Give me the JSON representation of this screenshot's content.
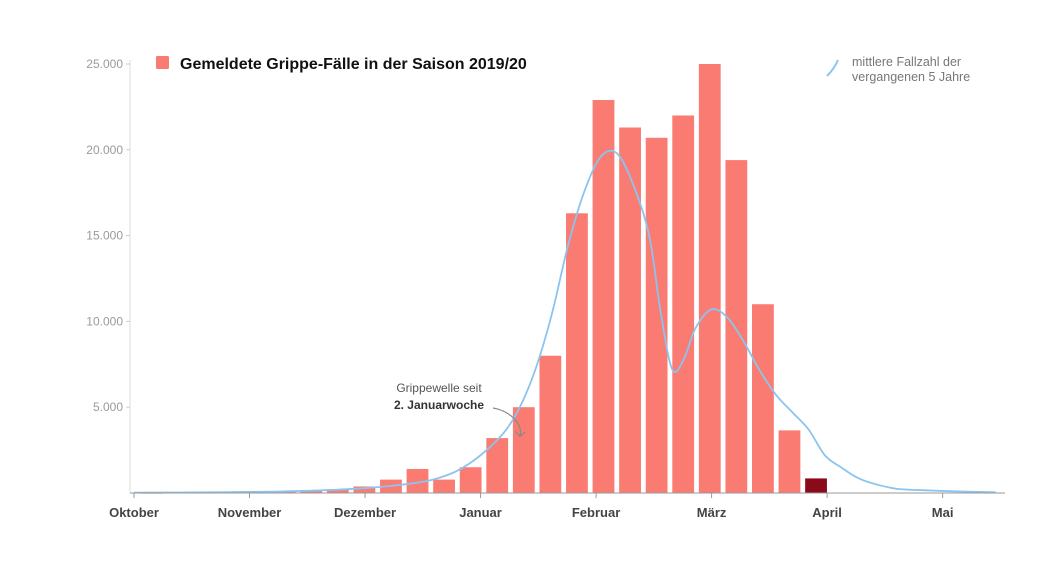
{
  "chart_data": {
    "type": "bar",
    "title": "Gemeldete Grippe-Fälle in der Saison 2019/20",
    "ylim": [
      0,
      25000
    ],
    "yticks": [
      5000,
      10000,
      15000,
      20000,
      25000
    ],
    "ytick_labels": [
      "5.000",
      "10.000",
      "15.000",
      "20.000",
      "25.000"
    ],
    "xlim": [
      0,
      37.7
    ],
    "month_ticks": [
      {
        "label": "Oktober",
        "x": 0
      },
      {
        "label": "November",
        "x": 5
      },
      {
        "label": "Dezember",
        "x": 10
      },
      {
        "label": "Januar",
        "x": 15
      },
      {
        "label": "Februar",
        "x": 20
      },
      {
        "label": "März",
        "x": 25
      },
      {
        "label": "April",
        "x": 30
      },
      {
        "label": "Mai",
        "x": 35
      }
    ],
    "series": [
      {
        "name": "Gemeldete Grippe-Fälle in der Saison 2019/20",
        "type": "bar",
        "color": "#f97b72",
        "highlight_color": "#8b0a1a",
        "x": [
          0.3,
          1.45,
          2.6,
          3.75,
          4.9,
          6.05,
          7.2,
          8.35,
          9.5,
          10.65,
          11.8,
          12.95,
          14.1,
          15.25,
          16.4,
          17.55,
          18.7,
          19.85,
          21.0,
          22.15,
          23.3,
          24.45,
          25.6,
          26.75,
          27.9,
          29.05,
          30.2
        ],
        "values": [
          20,
          60,
          30,
          50,
          80,
          100,
          130,
          220,
          380,
          780,
          1400,
          780,
          1500,
          3200,
          5000,
          8000,
          16300,
          22900,
          21300,
          20700,
          22000,
          25000,
          19400,
          11000,
          3650,
          850,
          0
        ],
        "highlight_index": 25
      },
      {
        "name": "mittlere Fallzahl der vergangenen 5 Jahre",
        "type": "line",
        "color": "#8cc4ee",
        "x": [
          0,
          2,
          4,
          6,
          8,
          10,
          12,
          13,
          14,
          15,
          16,
          16.7,
          17.4,
          18.1,
          18.8,
          19.5,
          20.2,
          20.9,
          21.6,
          22.3,
          22.8,
          23.3,
          23.8,
          24.3,
          25.0,
          25.7,
          26.4,
          27.1,
          27.8,
          28.5,
          29.2,
          29.9,
          30.6,
          31.3,
          32.0,
          33.0,
          34.0,
          35.0,
          36.0,
          37.3
        ],
        "values": [
          20,
          30,
          50,
          80,
          150,
          280,
          550,
          800,
          1300,
          2200,
          3500,
          5000,
          7300,
          10500,
          14500,
          17600,
          19600,
          19800,
          18000,
          15000,
          10500,
          7200,
          7800,
          9600,
          10700,
          10200,
          8800,
          7100,
          5700,
          4700,
          3700,
          2200,
          1500,
          900,
          550,
          250,
          170,
          120,
          80,
          40
        ]
      }
    ],
    "annotation": {
      "line1": "Grippewelle seit",
      "line2": "2. Januarwoche",
      "arrow_target_x": 16.7,
      "arrow_target_value": 3300
    },
    "legend_line_label_lines": [
      "mittlere Fallzahl der",
      "vergangenen 5 Jahre"
    ]
  }
}
